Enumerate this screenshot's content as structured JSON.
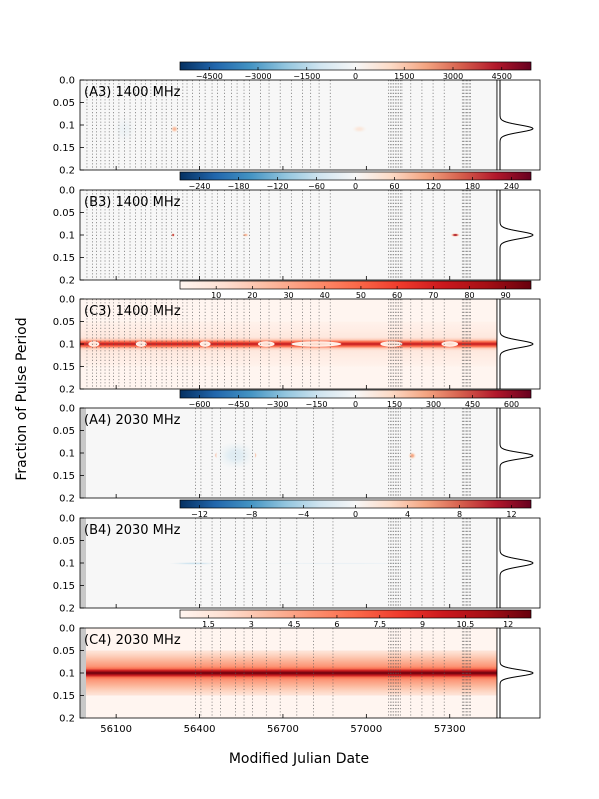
{
  "figure": {
    "ylabel": "Fraction of Pulse Period",
    "xlabel": "Modified Julian Date"
  },
  "chart_data": {
    "type": "heatmap",
    "shared_x": {
      "label": "Modified Julian Date",
      "range": [
        55970,
        57470
      ],
      "ticks": [
        56100,
        56400,
        56700,
        57000,
        57300
      ]
    },
    "shared_y": {
      "label": "Fraction of Pulse Period",
      "range": [
        0.0,
        0.2
      ],
      "ticks": [
        0.0,
        0.05,
        0.1,
        0.15,
        0.2
      ],
      "tick_labels": [
        "0.0",
        "0.05",
        "0.1",
        "0.15",
        "0.2"
      ]
    },
    "observation_mjds_1400": [
      55995,
      56015,
      56030,
      56045,
      56060,
      56075,
      56090,
      56110,
      56130,
      56150,
      56170,
      56190,
      56205,
      56225,
      56245,
      56265,
      56280,
      56300,
      56320,
      56340,
      56355,
      56375,
      56400,
      56420,
      56445,
      56465,
      56490,
      56515,
      56535,
      56560,
      56580,
      56620,
      56650,
      56690,
      56730,
      56770,
      56800,
      56830,
      56870,
      57080,
      57086,
      57092,
      57098,
      57104,
      57110,
      57116,
      57122,
      57128,
      57160,
      57200,
      57240,
      57280,
      57345,
      57350,
      57355,
      57360,
      57365,
      57370,
      57375
    ],
    "observation_mjds_2030": [
      56385,
      56405,
      56445,
      56475,
      56530,
      56560,
      56590,
      56640,
      56690,
      56750,
      56810,
      56880,
      57080,
      57086,
      57092,
      57098,
      57104,
      57110,
      57116,
      57122,
      57160,
      57200,
      57240,
      57280,
      57345,
      57350,
      57355,
      57360,
      57365,
      57370,
      57375
    ],
    "panels": [
      {
        "label": "(A3) 1400 MHz",
        "colormap": "diverging",
        "colorbar_range": [
          -5400,
          5400
        ],
        "colorbar_ticks": [
          -4500,
          -3000,
          -1500,
          0,
          1500,
          3000,
          4500
        ],
        "features": [
          {
            "mjd": 56125,
            "width_mjd": 16,
            "phase": 0.108,
            "phase_width": 0.008,
            "value": 4800
          },
          {
            "mjd": 56310,
            "width_mjd": 14,
            "phase": 0.109,
            "phase_width": 0.008,
            "value": 1900
          },
          {
            "mjd": 56975,
            "width_mjd": 26,
            "phase": 0.109,
            "phase_width": 0.008,
            "value": 700
          },
          {
            "mjd": 56130,
            "width_mjd": 40,
            "phase": 0.11,
            "phase_width": 0.03,
            "value": -300
          }
        ],
        "profile": {
          "center": 0.108,
          "width": 0.008
        }
      },
      {
        "label": "(B3) 1400 MHz",
        "colormap": "diverging",
        "colorbar_range": [
          -270,
          270
        ],
        "colorbar_ticks": [
          -240,
          -180,
          -120,
          -60,
          0,
          60,
          120,
          180,
          240
        ],
        "features": [
          {
            "mjd": 56305,
            "width_mjd": 6,
            "phase": 0.1,
            "phase_width": 0.004,
            "value": 230
          },
          {
            "mjd": 56565,
            "width_mjd": 12,
            "phase": 0.1,
            "phase_width": 0.004,
            "value": 110
          },
          {
            "mjd": 57320,
            "width_mjd": 16,
            "phase": 0.1,
            "phase_width": 0.004,
            "value": 240
          }
        ],
        "profile": {
          "center": 0.1,
          "width": 0.008
        }
      },
      {
        "label": "(C3) 1400 MHz",
        "colormap": "sequential",
        "colorbar_range": [
          0,
          97
        ],
        "colorbar_ticks": [
          10,
          20,
          30,
          40,
          50,
          60,
          70,
          80,
          90
        ],
        "band": {
          "phase": 0.1,
          "phase_width": 0.005,
          "base": 75,
          "halo": 8
        },
        "features": [
          {
            "mjd": 56020,
            "width_mjd": 20,
            "phase": 0.1,
            "phase_width": 0.006,
            "value": 14
          },
          {
            "mjd": 56190,
            "width_mjd": 20,
            "phase": 0.1,
            "phase_width": 0.006,
            "value": 12
          },
          {
            "mjd": 56420,
            "width_mjd": 20,
            "phase": 0.1,
            "phase_width": 0.006,
            "value": 10
          },
          {
            "mjd": 56640,
            "width_mjd": 30,
            "phase": 0.1,
            "phase_width": 0.006,
            "value": 14
          },
          {
            "mjd": 56820,
            "width_mjd": 90,
            "phase": 0.1,
            "phase_width": 0.006,
            "value": 14
          },
          {
            "mjd": 57090,
            "width_mjd": 40,
            "phase": 0.1,
            "phase_width": 0.006,
            "value": 14
          },
          {
            "mjd": 57300,
            "width_mjd": 30,
            "phase": 0.1,
            "phase_width": 0.006,
            "value": 14
          }
        ],
        "profile": {
          "center": 0.1,
          "width": 0.008
        }
      },
      {
        "label": "(A4) 2030 MHz",
        "colormap": "diverging",
        "colorbar_range": [
          -675,
          675
        ],
        "colorbar_ticks": [
          -600,
          -450,
          -300,
          -150,
          0,
          150,
          300,
          450,
          600
        ],
        "features": [
          {
            "mjd": 56470,
            "width_mjd": 16,
            "phase": 0.105,
            "phase_width": 0.008,
            "value": 650
          },
          {
            "mjd": 56590,
            "width_mjd": 16,
            "phase": 0.105,
            "phase_width": 0.008,
            "value": 640
          },
          {
            "mjd": 57165,
            "width_mjd": 14,
            "phase": 0.106,
            "phase_width": 0.008,
            "value": 280
          },
          {
            "mjd": 56530,
            "width_mjd": 70,
            "phase": 0.105,
            "phase_width": 0.03,
            "value": -90
          }
        ],
        "profile": {
          "center": 0.106,
          "width": 0.007
        }
      },
      {
        "label": "(B4) 2030 MHz",
        "colormap": "diverging",
        "colorbar_range": [
          -13.5,
          13.5
        ],
        "colorbar_ticks": [
          -12,
          -8,
          -4,
          0,
          4,
          8,
          12
        ],
        "features": [
          {
            "mjd": 56380,
            "width_mjd": 90,
            "phase": 0.101,
            "phase_width": 0.003,
            "value": -3
          },
          {
            "mjd": 56900,
            "width_mjd": 400,
            "phase": 0.101,
            "phase_width": 0.002,
            "value": -1
          }
        ],
        "profile": {
          "center": 0.1,
          "width": 0.008
        }
      },
      {
        "label": "(C4) 2030 MHz",
        "colormap": "sequential",
        "colorbar_range": [
          0.5,
          12.8
        ],
        "colorbar_ticks": [
          1.5,
          3.0,
          4.5,
          6.0,
          7.5,
          9.0,
          10.5,
          12.0
        ],
        "band": {
          "phase": 0.1,
          "phase_width": 0.005,
          "base": 12.5,
          "halo": 5
        },
        "features": [],
        "profile": {
          "center": 0.1,
          "width": 0.007
        }
      }
    ]
  }
}
